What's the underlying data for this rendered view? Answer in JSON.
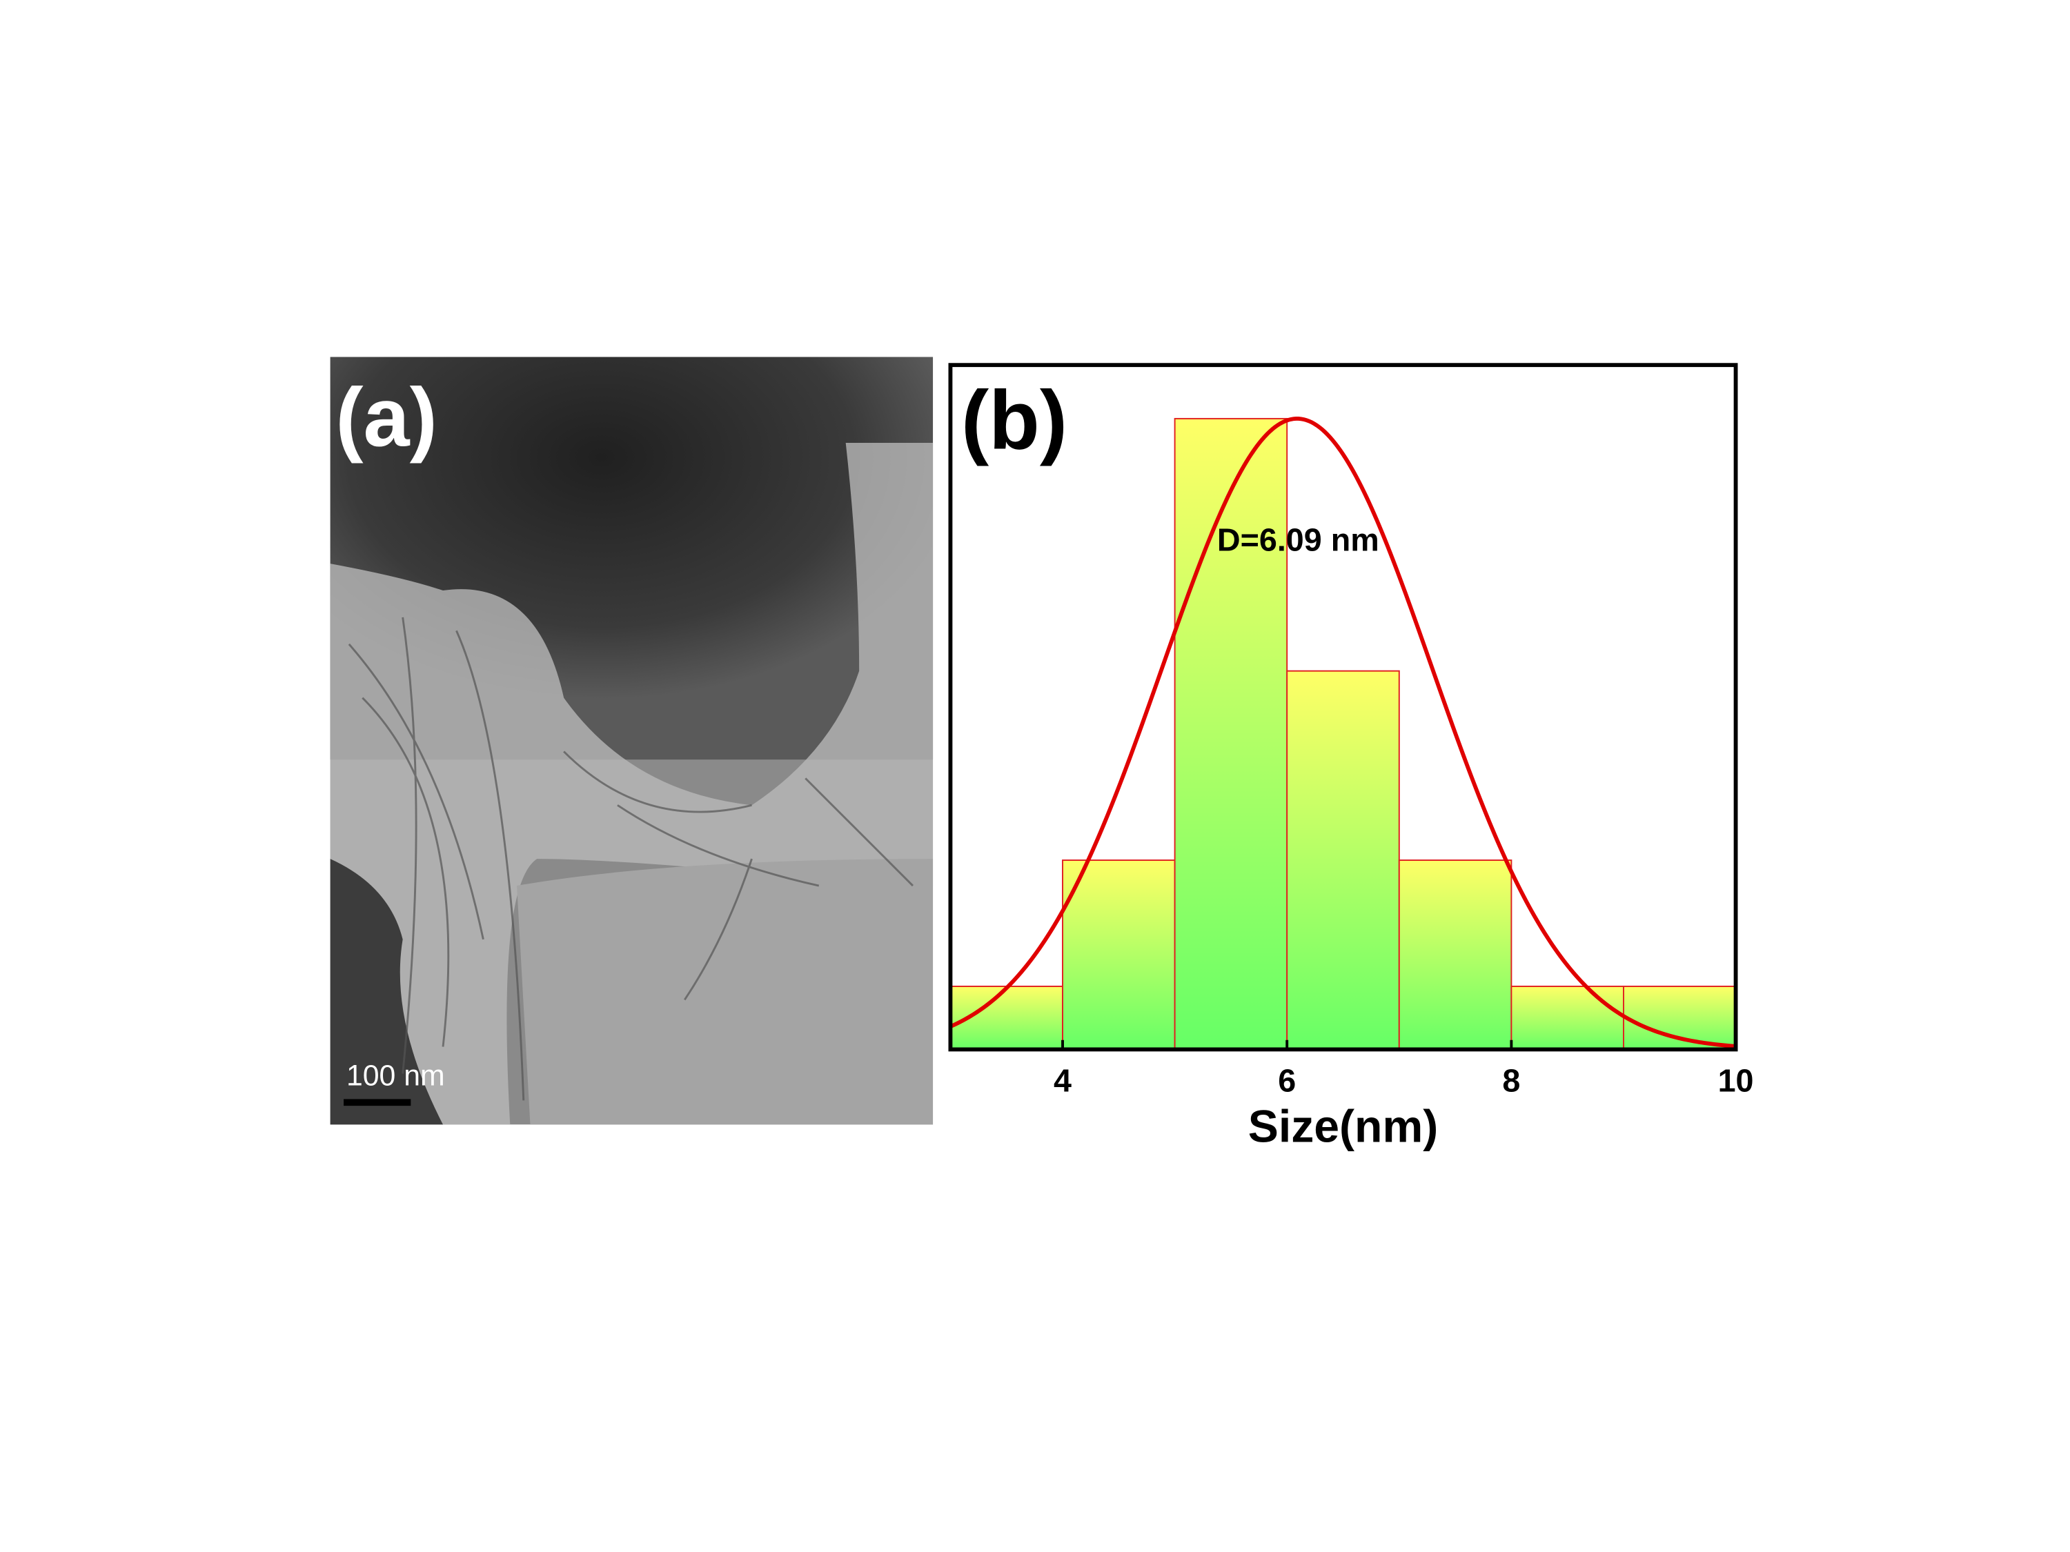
{
  "panel_a": {
    "label": "(a)",
    "scale_bar": "100 nm"
  },
  "chart_data": {
    "type": "histogram",
    "panel_label": "(b)",
    "annotation": "D=6.09 nm",
    "xlabel": "Size(nm)",
    "bins": [
      3,
      4,
      5,
      6,
      7,
      8,
      9,
      10
    ],
    "values": [
      1,
      3,
      10,
      6,
      3,
      1,
      1
    ],
    "xlim": [
      3,
      10
    ],
    "xticks": [
      4,
      6,
      8,
      10
    ],
    "ylim": [
      0,
      10.85
    ],
    "bar_color_top": "#ffff66",
    "bar_color_bottom": "#66ff66",
    "edge_color": "#e02020",
    "fit": {
      "center": 6.09,
      "sigma": 1.2,
      "peak": 10,
      "color": "#e00000"
    }
  }
}
